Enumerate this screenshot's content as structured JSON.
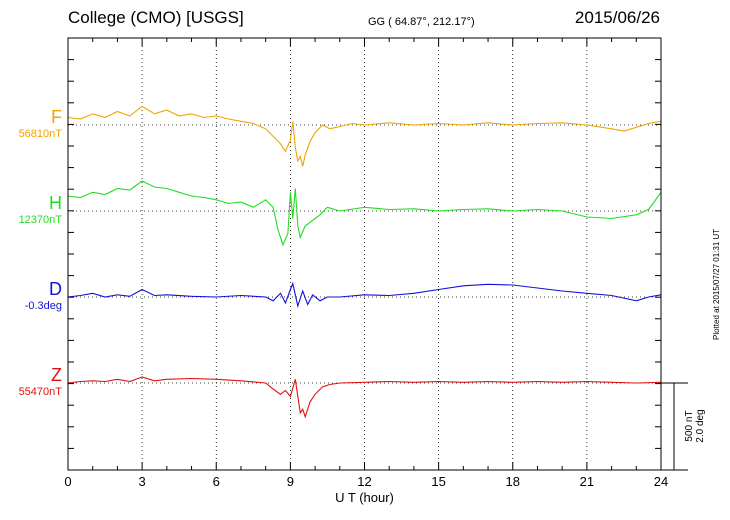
{
  "header": {
    "title": "College (CMO)  [USGS]",
    "coords": "GG ( 64.87°, 212.17°)",
    "date": "2015/06/26"
  },
  "footer": {
    "plotted": "Plotted at 2015/07/27 01:31  UT"
  },
  "scale": {
    "line1": "500 nT",
    "line2": "2.0 deg"
  },
  "chart_data": {
    "type": "line",
    "xlabel": "U T (hour)",
    "xlim": [
      0,
      24
    ],
    "xticks": [
      0,
      3,
      6,
      9,
      12,
      15,
      18,
      21,
      24
    ],
    "grid": true,
    "series": [
      {
        "name": "F",
        "baseline_label": "56810nT",
        "color": "#f0a400",
        "x": [
          0,
          0.5,
          1,
          1.5,
          2,
          2.5,
          3,
          3.5,
          4,
          4.5,
          5,
          5.5,
          6,
          6.5,
          7,
          7.5,
          8,
          8.3,
          8.6,
          8.8,
          9,
          9.1,
          9.2,
          9.3,
          9.4,
          9.5,
          9.6,
          9.8,
          10,
          10.3,
          10.6,
          11,
          11.5,
          12,
          13,
          14,
          15,
          16,
          17,
          18,
          19,
          20,
          21,
          22,
          22.5,
          23,
          23.5,
          24
        ],
        "values": [
          10,
          8,
          15,
          10,
          18,
          12,
          25,
          15,
          20,
          12,
          15,
          10,
          12,
          8,
          5,
          2,
          -5,
          -15,
          -25,
          -35,
          -20,
          5,
          -30,
          -48,
          -42,
          -55,
          -40,
          -22,
          -10,
          0,
          -5,
          -2,
          2,
          0,
          3,
          0,
          2,
          0,
          3,
          0,
          2,
          3,
          0,
          -5,
          -8,
          -3,
          2,
          5
        ]
      },
      {
        "name": "H",
        "baseline_label": "12370nT",
        "color": "#22dd22",
        "x": [
          0,
          0.5,
          1,
          1.5,
          2,
          2.5,
          3,
          3.5,
          4,
          4.5,
          5,
          5.5,
          6,
          6.5,
          7,
          7.5,
          8,
          8.3,
          8.5,
          8.7,
          8.9,
          9,
          9.1,
          9.2,
          9.3,
          9.4,
          9.6,
          9.8,
          10,
          10.2,
          10.5,
          11,
          12,
          13,
          14,
          15,
          16,
          17,
          18,
          19,
          20,
          21,
          22,
          23,
          23.5,
          24
        ],
        "values": [
          20,
          18,
          25,
          22,
          30,
          28,
          40,
          32,
          30,
          25,
          20,
          18,
          15,
          10,
          12,
          5,
          15,
          5,
          -25,
          -45,
          -30,
          25,
          -10,
          30,
          -20,
          -35,
          -20,
          -15,
          -10,
          -5,
          5,
          0,
          5,
          2,
          3,
          0,
          2,
          3,
          0,
          2,
          0,
          -8,
          -10,
          -5,
          2,
          25
        ]
      },
      {
        "name": "D",
        "baseline_label": "-0.3deg",
        "color": "#1111dd",
        "x": [
          0,
          0.5,
          1,
          1.5,
          2,
          2.5,
          3,
          3.5,
          4,
          5,
          6,
          7,
          8,
          8.3,
          8.6,
          8.8,
          9,
          9.1,
          9.3,
          9.5,
          9.7,
          9.9,
          10.2,
          10.5,
          11,
          12,
          13,
          14,
          15,
          16,
          17,
          18,
          19,
          20,
          21,
          22,
          23,
          23.5,
          24
        ],
        "values": [
          0,
          2,
          5,
          0,
          3,
          1,
          10,
          2,
          3,
          1,
          0,
          2,
          0,
          -5,
          5,
          -8,
          10,
          18,
          -12,
          8,
          -10,
          3,
          -5,
          0,
          0,
          3,
          2,
          5,
          10,
          15,
          17,
          16,
          12,
          8,
          5,
          2,
          -5,
          0,
          3
        ]
      },
      {
        "name": "Z",
        "baseline_label": "55470nT",
        "color": "#dd1111",
        "x": [
          0,
          0.5,
          1,
          1.5,
          2,
          2.5,
          3,
          3.5,
          4,
          5,
          6,
          7,
          8,
          8.3,
          8.6,
          8.8,
          9,
          9.2,
          9.4,
          9.5,
          9.6,
          9.8,
          10,
          10.3,
          10.6,
          11,
          12,
          13,
          14,
          15,
          16,
          17,
          18,
          19,
          20,
          21,
          22,
          23,
          24
        ],
        "values": [
          0,
          2,
          3,
          2,
          5,
          2,
          8,
          3,
          5,
          6,
          5,
          3,
          0,
          -8,
          -15,
          -10,
          -18,
          5,
          -40,
          -35,
          -45,
          -25,
          -15,
          -5,
          -2,
          0,
          1,
          2,
          1,
          2,
          1,
          2,
          1,
          2,
          1,
          2,
          1,
          0,
          1
        ]
      }
    ]
  }
}
